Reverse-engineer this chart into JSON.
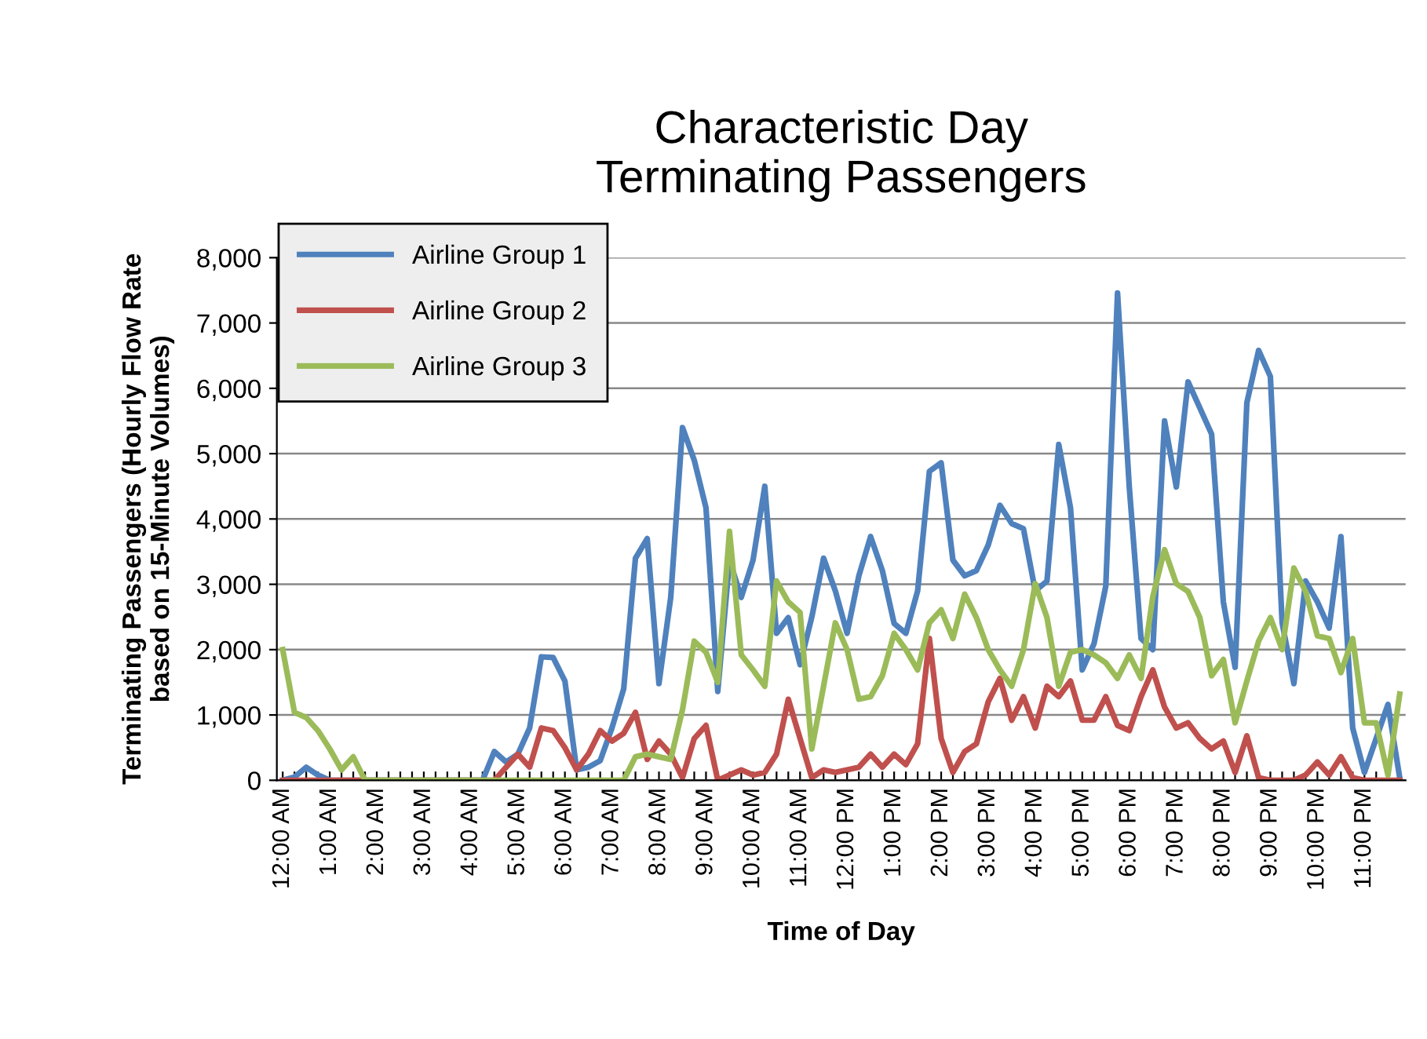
{
  "chart_data": {
    "type": "line",
    "title": "Characteristic Day\nTerminating Passengers",
    "xlabel": "Time of Day",
    "ylabel": "Terminating Passengers (Hourly Flow Rate\nbased on 15-Minute Volumes)",
    "categories": [
      "12:00 AM",
      null,
      null,
      null,
      "1:00 AM",
      null,
      null,
      null,
      "2:00 AM",
      null,
      null,
      null,
      "3:00 AM",
      null,
      null,
      null,
      "4:00 AM",
      null,
      null,
      null,
      "5:00 AM",
      null,
      null,
      null,
      "6:00 AM",
      null,
      null,
      null,
      "7:00 AM",
      null,
      null,
      null,
      "8:00 AM",
      null,
      null,
      null,
      "9:00 AM",
      null,
      null,
      null,
      "10:00 AM",
      null,
      null,
      null,
      "11:00 AM",
      null,
      null,
      null,
      "12:00 PM",
      null,
      null,
      null,
      "1:00 PM",
      null,
      null,
      null,
      "2:00 PM",
      null,
      null,
      null,
      "3:00 PM",
      null,
      null,
      null,
      "4:00 PM",
      null,
      null,
      null,
      "5:00 PM",
      null,
      null,
      null,
      "6:00 PM",
      null,
      null,
      null,
      "7:00 PM",
      null,
      null,
      null,
      "8:00 PM",
      null,
      null,
      null,
      "9:00 PM",
      null,
      null,
      null,
      "10:00 PM",
      null,
      null,
      null,
      "11:00 PM",
      null,
      null,
      null
    ],
    "series": [
      {
        "name": "Airline Group 1",
        "color": "#4f81bd",
        "values": [
          0,
          50,
          200,
          80,
          0,
          0,
          0,
          0,
          0,
          0,
          0,
          0,
          0,
          0,
          0,
          0,
          0,
          0,
          440,
          280,
          400,
          800,
          1890,
          1880,
          1520,
          160,
          200,
          300,
          800,
          1400,
          3400,
          3700,
          1480,
          2800,
          5400,
          4900,
          4170,
          1360,
          3370,
          2800,
          3370,
          4500,
          2250,
          2490,
          1770,
          2500,
          3400,
          2900,
          2250,
          3130,
          3730,
          3210,
          2400,
          2250,
          2900,
          4730,
          4860,
          3370,
          3130,
          3210,
          3600,
          4210,
          3930,
          3850,
          2900,
          3050,
          5140,
          4170,
          1690,
          2090,
          2970,
          7460,
          4490,
          2170,
          2000,
          5500,
          4490,
          6100,
          5700,
          5300,
          2730,
          1730,
          5780,
          6580,
          6180,
          2410,
          1480,
          3050,
          2730,
          2330,
          3730,
          800,
          120,
          640,
          1160,
          40
        ]
      },
      {
        "name": "Airline Group 2",
        "color": "#c0504d",
        "values": [
          0,
          0,
          0,
          0,
          0,
          0,
          0,
          0,
          0,
          0,
          0,
          0,
          0,
          0,
          0,
          0,
          0,
          0,
          0,
          200,
          400,
          200,
          800,
          760,
          500,
          160,
          400,
          760,
          600,
          720,
          1040,
          320,
          600,
          400,
          40,
          640,
          840,
          0,
          80,
          160,
          80,
          120,
          400,
          1240,
          640,
          40,
          160,
          120,
          160,
          200,
          400,
          200,
          400,
          240,
          560,
          2170,
          640,
          120,
          440,
          560,
          1200,
          1560,
          920,
          1280,
          800,
          1440,
          1280,
          1520,
          920,
          920,
          1280,
          840,
          760,
          1280,
          1690,
          1120,
          800,
          880,
          640,
          480,
          600,
          120,
          680,
          40,
          0,
          0,
          0,
          80,
          280,
          80,
          360,
          40,
          0,
          0,
          0,
          0
        ]
      },
      {
        "name": "Airline Group 3",
        "color": "#9bbb59",
        "values": [
          2000,
          1040,
          960,
          760,
          480,
          160,
          360,
          0,
          0,
          0,
          0,
          0,
          0,
          0,
          0,
          0,
          0,
          0,
          0,
          0,
          0,
          0,
          0,
          0,
          0,
          0,
          0,
          0,
          0,
          0,
          360,
          400,
          360,
          320,
          1080,
          2130,
          1960,
          1500,
          3810,
          1920,
          1690,
          1440,
          3050,
          2730,
          2570,
          480,
          1440,
          2410,
          2000,
          1240,
          1280,
          1600,
          2250,
          2000,
          1690,
          2410,
          2610,
          2170,
          2850,
          2490,
          2000,
          1690,
          1440,
          2000,
          3010,
          2490,
          1440,
          1960,
          2000,
          1920,
          1800,
          1560,
          1920,
          1560,
          2810,
          3530,
          3010,
          2890,
          2490,
          1600,
          1850,
          880,
          1520,
          2130,
          2490,
          2000,
          3250,
          2890,
          2210,
          2170,
          1650,
          2170,
          880,
          880,
          80,
          1320
        ]
      }
    ],
    "ylim": [
      0,
      8000
    ],
    "yticks": [
      0,
      {
        "value": 1000,
        "label": "1,000"
      },
      {
        "value": 2000,
        "label": "2,000"
      },
      {
        "value": 3000,
        "label": "3,000"
      },
      {
        "value": 4000,
        "label": "4,000"
      },
      {
        "value": 5000,
        "label": "5,000"
      },
      {
        "value": 6000,
        "label": "6,000"
      },
      {
        "value": 7000,
        "label": "7,000"
      },
      {
        "value": 8000,
        "label": "8,000"
      }
    ],
    "grid": "y",
    "legend": "top left",
    "marker": "none",
    "line_style": "solid"
  }
}
